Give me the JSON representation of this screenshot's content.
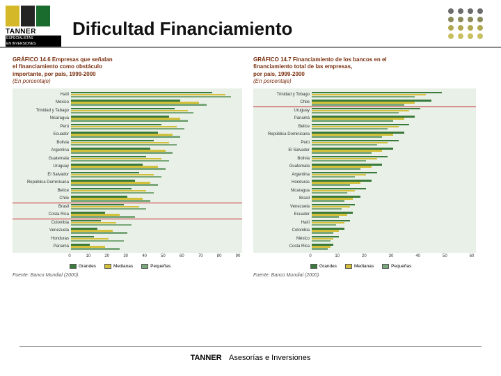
{
  "logo": {
    "brand": "TANNER",
    "sub1": "ESPECIALISTAS",
    "sub2": "EN INVERSIONES",
    "box_colors": [
      "#d4b828",
      "#242424",
      "#1a6b2e"
    ]
  },
  "title": "Dificultad Financiamiento",
  "dot_colors": [
    "#6b6b6b",
    "#6b6b6b",
    "#6b6b6b",
    "#6b6b6b",
    "#8a8a5a",
    "#8a8a5a",
    "#8a8a5a",
    "#8a8a5a",
    "#b0a850",
    "#b0a850",
    "#b0a850",
    "#b0a850",
    "#c8c060",
    "#c8c060",
    "#c8c060",
    "#c8c060"
  ],
  "chart_left": {
    "num": "GRÁFICO 14.6",
    "title_l1": "Empresas que señalan",
    "title_l2": "el financiamiento como obstáculo",
    "title_l3": "importante, por país, 1999-2000",
    "sub": "(En porcentaje)",
    "xmax": 90,
    "xticks": [
      0,
      10,
      20,
      30,
      40,
      50,
      60,
      70,
      80,
      90
    ],
    "bg": "#e8f0e8",
    "bar_colors": {
      "grandes": "#3a7a3a",
      "medianas": "#d4c03a",
      "pequenas": "#7aa87a"
    },
    "hline1_after_row": 14,
    "hline2_after_row": 16,
    "rows": [
      {
        "label": "Haití",
        "g": 75,
        "m": 82,
        "p": 85
      },
      {
        "label": "México",
        "g": 58,
        "m": 68,
        "p": 72
      },
      {
        "label": "Trinidad y Tabago",
        "g": 55,
        "m": 62,
        "p": 65
      },
      {
        "label": "Nicaragua",
        "g": 52,
        "m": 58,
        "p": 62
      },
      {
        "label": "Perú",
        "g": 48,
        "m": 56,
        "p": 60
      },
      {
        "label": "Ecuador",
        "g": 46,
        "m": 54,
        "p": 58
      },
      {
        "label": "Bolivia",
        "g": 44,
        "m": 52,
        "p": 56
      },
      {
        "label": "Argentina",
        "g": 42,
        "m": 50,
        "p": 54
      },
      {
        "label": "Guatemala",
        "g": 40,
        "m": 48,
        "p": 52
      },
      {
        "label": "Uruguay",
        "g": 38,
        "m": 46,
        "p": 50
      },
      {
        "label": "El Salvador",
        "g": 36,
        "m": 44,
        "p": 48
      },
      {
        "label": "República Dominicana",
        "g": 34,
        "m": 42,
        "p": 46
      },
      {
        "label": "Belice",
        "g": 32,
        "m": 40,
        "p": 44
      },
      {
        "label": "Chile",
        "g": 30,
        "m": 38,
        "p": 42
      },
      {
        "label": "Brasil",
        "g": 28,
        "m": 36,
        "p": 40
      },
      {
        "label": "Costa Rica",
        "g": 18,
        "m": 26,
        "p": 34
      },
      {
        "label": "Colombia",
        "g": 16,
        "m": 24,
        "p": 32
      },
      {
        "label": "Venezuela",
        "g": 14,
        "m": 22,
        "p": 30
      },
      {
        "label": "Honduras",
        "g": 12,
        "m": 20,
        "p": 28
      },
      {
        "label": "Panamá",
        "g": 10,
        "m": 18,
        "p": 26
      }
    ],
    "source": "Fuente: Banco Mundial (2000)."
  },
  "chart_right": {
    "num": "GRÁFICO 14.7",
    "title_l1": "Financiamiento de los bancos en el",
    "title_l2": "financiamiento total de las empresas,",
    "title_l3": "por país, 1999-2000",
    "sub": "(En porcentaje)",
    "xmax": 60,
    "xticks": [
      0,
      10,
      20,
      30,
      40,
      50,
      60
    ],
    "bg": "#e8f0e8",
    "bar_colors": {
      "grandes": "#3a7a3a",
      "medianas": "#d4c03a",
      "pequenas": "#7aa87a"
    },
    "hline1_after_row": 2,
    "rows": [
      {
        "label": "Trinidad y Tobago",
        "g": 48,
        "m": 42,
        "p": 38
      },
      {
        "label": "Chile",
        "g": 44,
        "m": 38,
        "p": 34
      },
      {
        "label": "Uruguay",
        "g": 40,
        "m": 36,
        "p": 32
      },
      {
        "label": "Panamá",
        "g": 38,
        "m": 34,
        "p": 30
      },
      {
        "label": "Belice",
        "g": 36,
        "m": 32,
        "p": 28
      },
      {
        "label": "República Dominicana",
        "g": 34,
        "m": 30,
        "p": 26
      },
      {
        "label": "Perú",
        "g": 32,
        "m": 28,
        "p": 24
      },
      {
        "label": "El Salvador",
        "g": 30,
        "m": 26,
        "p": 22
      },
      {
        "label": "Bolivia",
        "g": 28,
        "m": 24,
        "p": 20
      },
      {
        "label": "Guatemala",
        "g": 26,
        "m": 22,
        "p": 18
      },
      {
        "label": "Argentina",
        "g": 24,
        "m": 20,
        "p": 16
      },
      {
        "label": "Honduras",
        "g": 22,
        "m": 18,
        "p": 14
      },
      {
        "label": "Nicaragua",
        "g": 20,
        "m": 16,
        "p": 13
      },
      {
        "label": "Brasil",
        "g": 18,
        "m": 15,
        "p": 12
      },
      {
        "label": "Venezuela",
        "g": 16,
        "m": 14,
        "p": 11
      },
      {
        "label": "Ecuador",
        "g": 15,
        "m": 13,
        "p": 10
      },
      {
        "label": "Haití",
        "g": 14,
        "m": 12,
        "p": 9
      },
      {
        "label": "Colombia",
        "g": 12,
        "m": 10,
        "p": 8
      },
      {
        "label": "México",
        "g": 10,
        "m": 8,
        "p": 7
      },
      {
        "label": "Costa Rica",
        "g": 8,
        "m": 7,
        "p": 6
      }
    ],
    "source": "Fuente: Banco Mundial (2000)."
  },
  "legend": {
    "g": "Grandes",
    "m": "Medianas",
    "p": "Pequeñas"
  },
  "footer": {
    "brand": "TANNER",
    "text": "Asesorías e Inversiones"
  }
}
